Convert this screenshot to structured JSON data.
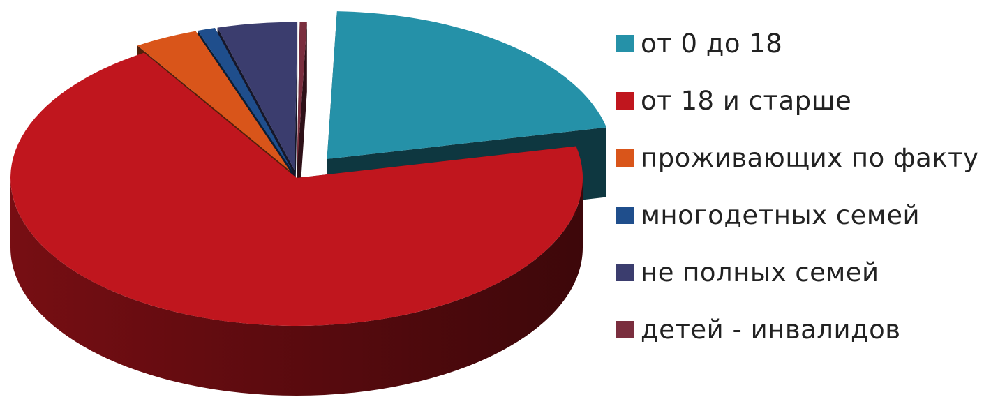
{
  "chart_data": {
    "type": "pie",
    "style": "3d-exploded",
    "title": "",
    "legend_position": "right",
    "values_estimated_as_percent": true,
    "slices": [
      {
        "label": "от 0 до 18",
        "value": 21.0,
        "color": "#2591A8"
      },
      {
        "label": "от 18 и старше",
        "value": 69.5,
        "color": "#C0161E"
      },
      {
        "label": "проживающих по факту",
        "value": 3.6,
        "color": "#D9551A"
      },
      {
        "label": "многодетных семей",
        "value": 1.0,
        "color": "#1F4E8C"
      },
      {
        "label": "не полных семей",
        "value": 4.5,
        "color": "#3B3D6E"
      },
      {
        "label": "детей - инвалидов",
        "value": 0.4,
        "color": "#7A2E3E"
      }
    ]
  }
}
